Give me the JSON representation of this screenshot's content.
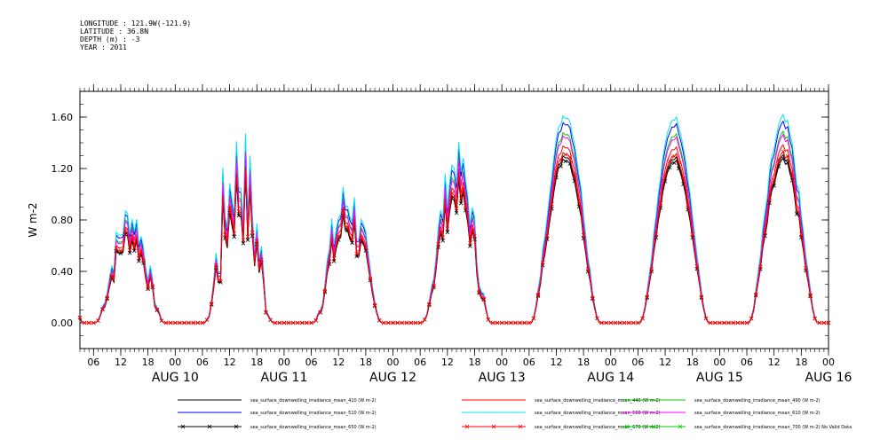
{
  "header": {
    "longitude": "LONGITUDE : 121.9W(-121.9)",
    "latitude": "LATITUDE : 36.8N",
    "depth": "DEPTH (m) : -3",
    "year": "YEAR : 2011"
  },
  "chart_data": {
    "type": "line",
    "ylabel": "W m-2",
    "ylim": [
      -0.2,
      1.8
    ],
    "yticks": [
      "0.00",
      "0.40",
      "0.80",
      "1.20",
      "1.60"
    ],
    "ytick_values": [
      0,
      0.4,
      0.8,
      1.2,
      1.6
    ],
    "x_start_hour": 99,
    "x_end_hour": 264,
    "hour_ticks": [
      "06",
      "12",
      "18",
      "00",
      "06",
      "12",
      "18",
      "00",
      "06",
      "12",
      "18",
      "00",
      "06",
      "12",
      "18",
      "00",
      "06",
      "12",
      "18",
      "00",
      "06",
      "12",
      "18",
      "00",
      "06",
      "12",
      "18",
      "00"
    ],
    "day_labels": [
      "AUG 10",
      "AUG 11",
      "AUG 12",
      "AUG 13",
      "AUG 14",
      "AUG 15",
      "AUG 16"
    ],
    "days": [
      {
        "label": "AUG 10",
        "peak": 0.62,
        "noise": 0.12
      },
      {
        "label": "AUG 11",
        "peak": 0.85,
        "noise": 0.35
      },
      {
        "label": "AUG 12",
        "peak": 0.7,
        "noise": 0.18
      },
      {
        "label": "AUG 13",
        "peak": 0.95,
        "noise": 0.15
      },
      {
        "label": "AUG 14",
        "peak": 1.3,
        "noise": 0.03
      },
      {
        "label": "AUG 15",
        "peak": 1.28,
        "noise": 0.02
      },
      {
        "label": "AUG 16",
        "peak": 1.25,
        "noise": 0.05
      }
    ],
    "series": [
      {
        "name": "sea_surface_downwelling_irradiance_mean_410 (W m-2)",
        "color": "#000000",
        "scale": 1.0,
        "marker": "none"
      },
      {
        "name": "sea_surface_downwelling_irradiance_mean_440 (W m-2)",
        "color": "#ff0000",
        "scale": 1.06,
        "marker": "none"
      },
      {
        "name": "sea_surface_downwelling_irradiance_mean_490 (W m-2)",
        "color": "#00cc00",
        "scale": 1.14,
        "marker": "none"
      },
      {
        "name": "sea_surface_downwelling_irradiance_mean_510 (W m-2)",
        "color": "#0000ff",
        "scale": 1.2,
        "marker": "none"
      },
      {
        "name": "sea_surface_downwelling_irradiance_mean_560 (W m-2)",
        "color": "#00e5ee",
        "scale": 1.24,
        "marker": "none"
      },
      {
        "name": "sea_surface_downwelling_irradiance_mean_610 (W m-2)",
        "color": "#ff00ff",
        "scale": 1.12,
        "marker": "none"
      },
      {
        "name": "sea_surface_downwelling_irradiance_mean_650 (W m-2)",
        "color": "#000000",
        "scale": 0.98,
        "marker": "x"
      },
      {
        "name": "sea_surface_downwelling_irradiance_mean_670 (W m-2)",
        "color": "#ff0000",
        "scale": 1.02,
        "marker": "x"
      },
      {
        "name": "sea_surface_downwelling_irradiance_mean_700 (W m-2) No Valid Data",
        "color": "#00cc00",
        "scale": 0,
        "marker": "x"
      }
    ]
  }
}
